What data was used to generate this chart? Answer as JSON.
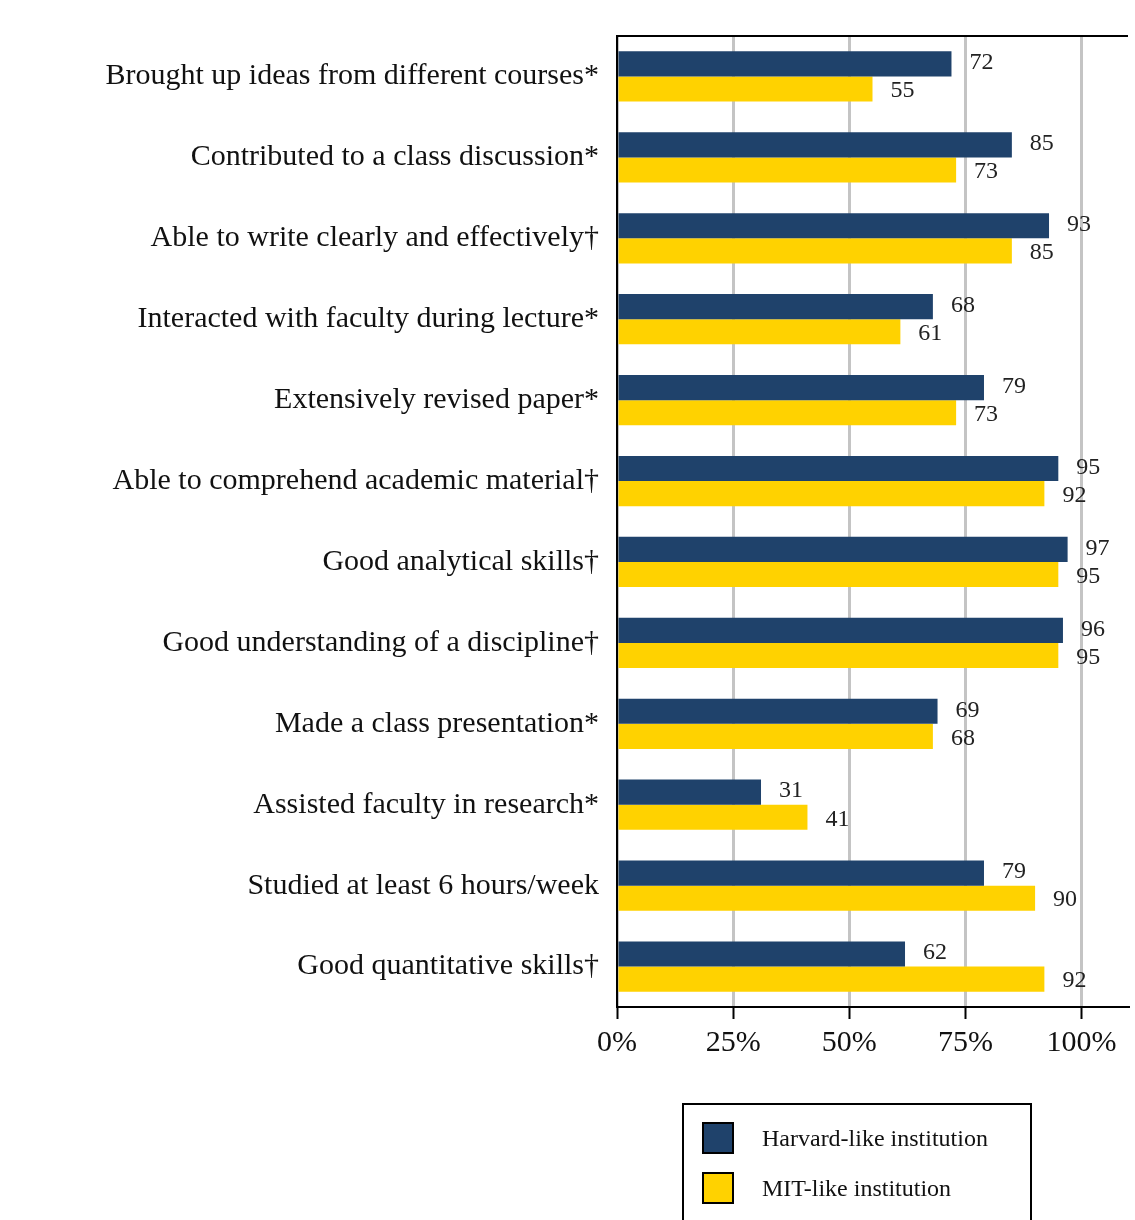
{
  "chart_data": {
    "type": "bar",
    "orientation": "horizontal",
    "categories": [
      "Brought up ideas from different courses*",
      "Contributed to a class discussion*",
      "Able to write clearly and effectively†",
      "Interacted with faculty during lecture*",
      "Extensively revised paper*",
      "Able to comprehend academic material†",
      "Good analytical skills†",
      "Good understanding of a discipline†",
      "Made a class presentation*",
      "Assisted faculty in research*",
      "Studied at least 6 hours/week",
      "Good quantitative skills†"
    ],
    "series": [
      {
        "name": "Harvard-like institution",
        "color": "#1f426b",
        "values": [
          72,
          85,
          93,
          68,
          79,
          95,
          97,
          96,
          69,
          31,
          79,
          62
        ]
      },
      {
        "name": "MIT-like institution",
        "color": "#ffd200",
        "values": [
          55,
          73,
          85,
          61,
          73,
          92,
          95,
          95,
          68,
          41,
          90,
          92
        ]
      }
    ],
    "xlim": [
      0,
      110
    ],
    "xticks": [
      {
        "value": 0,
        "label": "0%"
      },
      {
        "value": 25,
        "label": "25%"
      },
      {
        "value": 50,
        "label": "50%"
      },
      {
        "value": 75,
        "label": "75%"
      },
      {
        "value": 100,
        "label": "100%"
      }
    ],
    "grid": "x",
    "data_labels": true,
    "legend": "bottom"
  }
}
